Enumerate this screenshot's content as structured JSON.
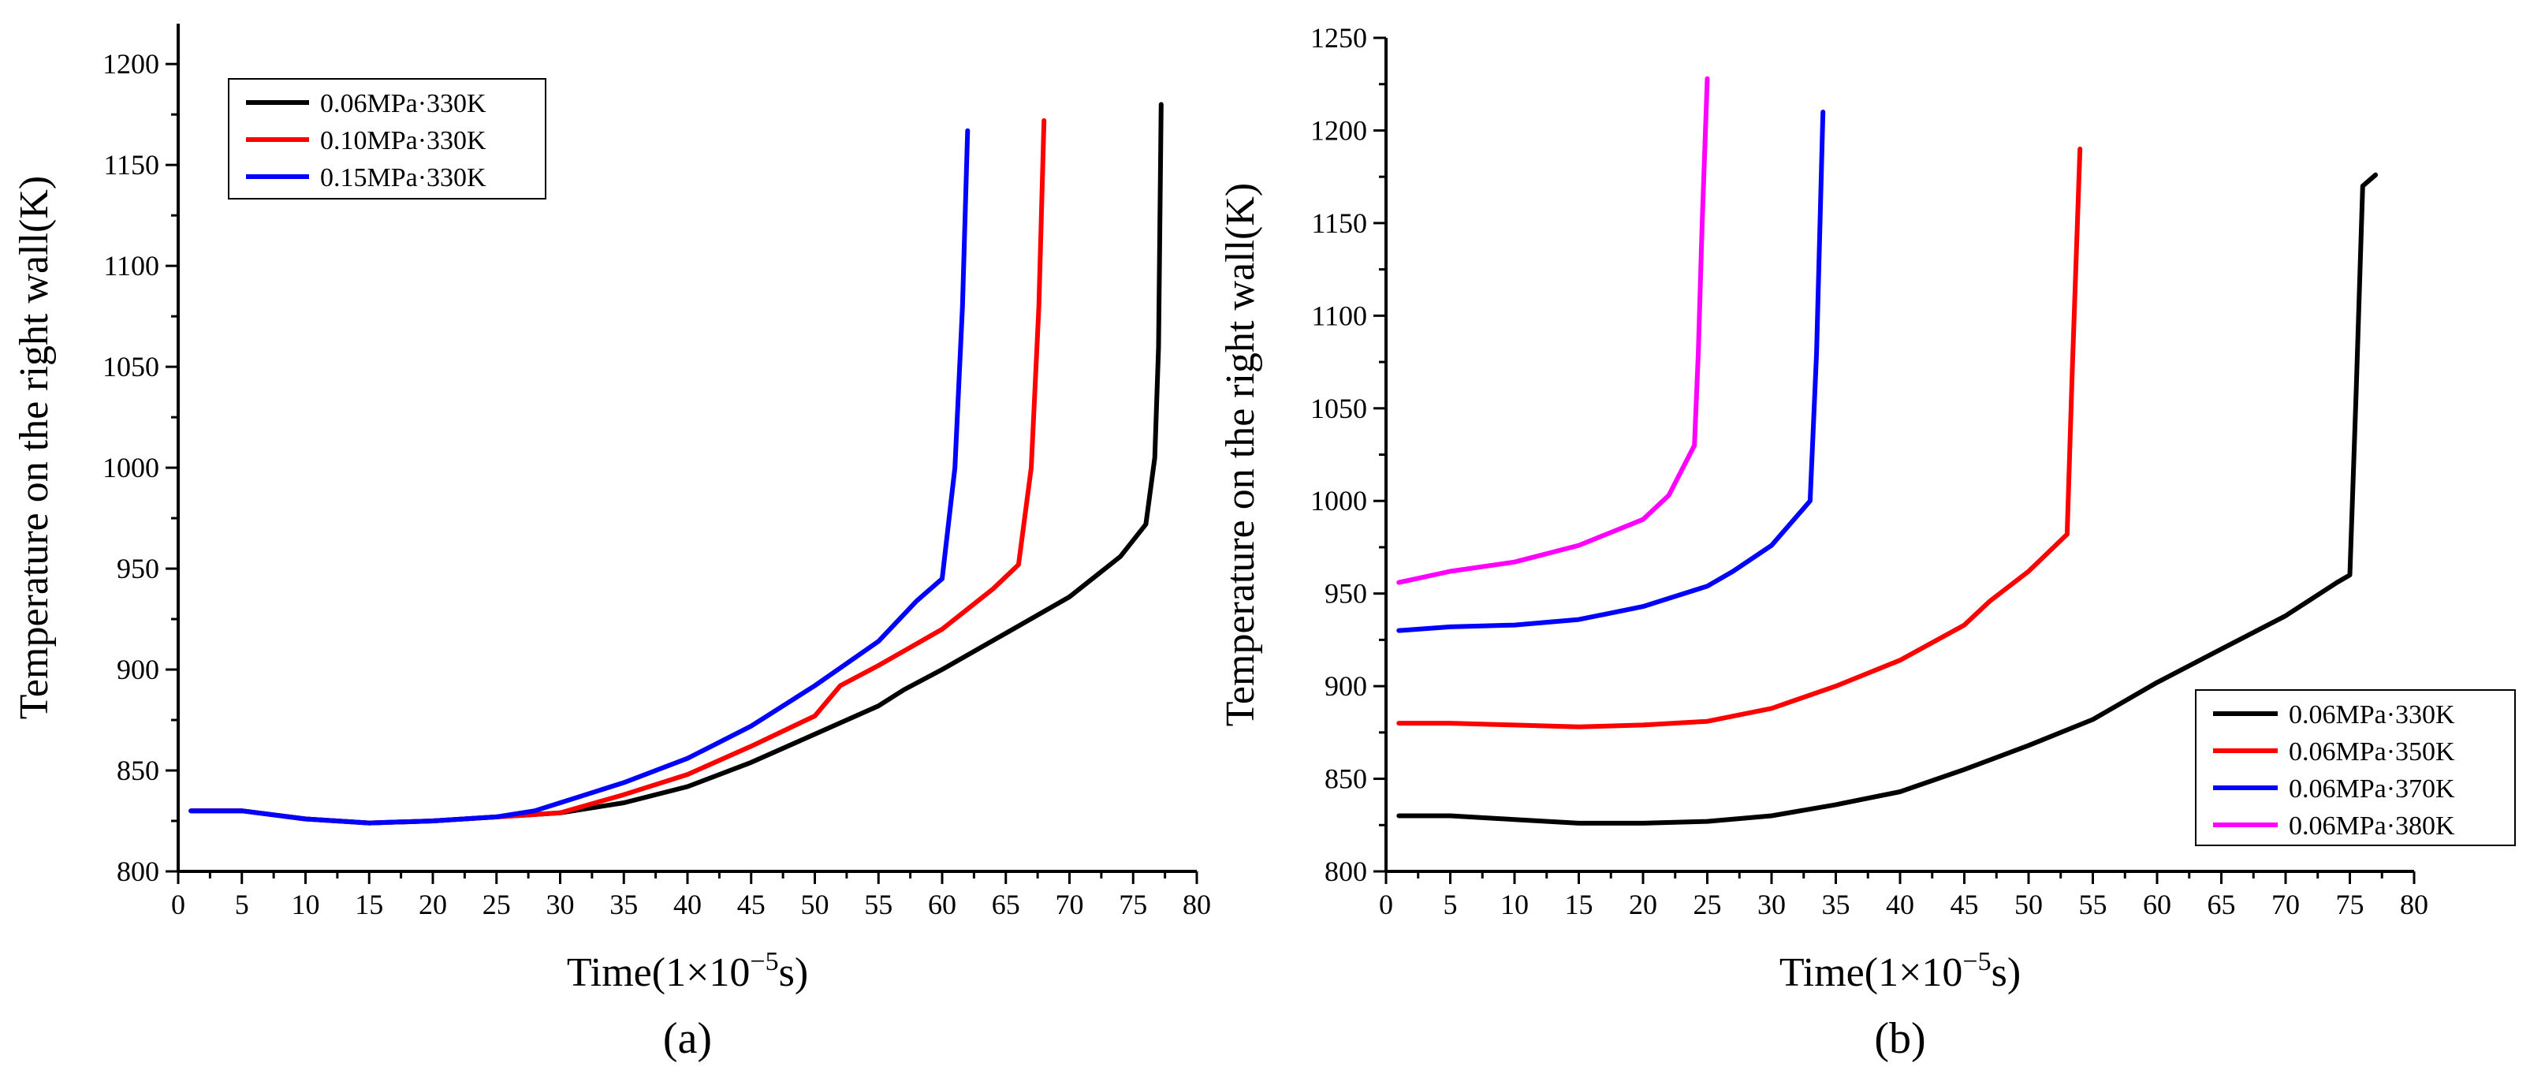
{
  "chart_data": [
    {
      "type": "line",
      "panel_label": "(a)",
      "xlabel": "Time(1×10",
      "xlabel_exp": "−5",
      "xlabel_end": "s)",
      "ylabel": "Temperature on the right wall(K)",
      "xlim": [
        0,
        80
      ],
      "ylim": [
        800,
        1220
      ],
      "xticks": [
        0,
        5,
        10,
        15,
        20,
        25,
        30,
        35,
        40,
        45,
        50,
        55,
        60,
        65,
        70,
        75,
        80
      ],
      "yticks": [
        800,
        850,
        900,
        950,
        1000,
        1050,
        1100,
        1150,
        1200
      ],
      "legend_position": "top-left",
      "series": [
        {
          "name": "0.06MPa·330K",
          "color": "#000000",
          "points": [
            [
              1,
              830
            ],
            [
              5,
              830
            ],
            [
              10,
              826
            ],
            [
              15,
              824
            ],
            [
              20,
              825
            ],
            [
              25,
              827
            ],
            [
              30,
              829
            ],
            [
              35,
              834
            ],
            [
              40,
              842
            ],
            [
              45,
              854
            ],
            [
              50,
              868
            ],
            [
              55,
              882
            ],
            [
              57,
              890
            ],
            [
              60,
              900
            ],
            [
              65,
              918
            ],
            [
              70,
              936
            ],
            [
              74,
              956
            ],
            [
              76,
              972
            ],
            [
              76.7,
              1005
            ],
            [
              77,
              1060
            ],
            [
              77.2,
              1180
            ]
          ]
        },
        {
          "name": "0.10MPa·330K",
          "color": "#ff0000",
          "points": [
            [
              1,
              830
            ],
            [
              5,
              830
            ],
            [
              10,
              826
            ],
            [
              15,
              824
            ],
            [
              20,
              825
            ],
            [
              25,
              827
            ],
            [
              30,
              829
            ],
            [
              35,
              838
            ],
            [
              40,
              848
            ],
            [
              45,
              862
            ],
            [
              50,
              877
            ],
            [
              52,
              892
            ],
            [
              55,
              902
            ],
            [
              60,
              920
            ],
            [
              64,
              940
            ],
            [
              66,
              952
            ],
            [
              67,
              1000
            ],
            [
              67.6,
              1080
            ],
            [
              68,
              1172
            ]
          ]
        },
        {
          "name": "0.15MPa·330K",
          "color": "#0000ff",
          "points": [
            [
              1,
              830
            ],
            [
              5,
              830
            ],
            [
              10,
              826
            ],
            [
              15,
              824
            ],
            [
              20,
              825
            ],
            [
              25,
              827
            ],
            [
              28,
              830
            ],
            [
              30,
              834
            ],
            [
              35,
              844
            ],
            [
              40,
              856
            ],
            [
              45,
              872
            ],
            [
              50,
              892
            ],
            [
              55,
              914
            ],
            [
              58,
              934
            ],
            [
              60,
              945
            ],
            [
              61,
              1000
            ],
            [
              61.6,
              1080
            ],
            [
              62,
              1167
            ]
          ]
        }
      ]
    },
    {
      "type": "line",
      "panel_label": "(b)",
      "xlabel": "Time(1×10",
      "xlabel_exp": "−5",
      "xlabel_end": "s)",
      "ylabel": "Temperature on the right wall(K)",
      "xlim": [
        0,
        80
      ],
      "ylim": [
        800,
        1250
      ],
      "xticks": [
        0,
        5,
        10,
        15,
        20,
        25,
        30,
        35,
        40,
        45,
        50,
        55,
        60,
        65,
        70,
        75,
        80
      ],
      "yticks": [
        800,
        850,
        900,
        950,
        1000,
        1050,
        1100,
        1150,
        1200,
        1250
      ],
      "legend_position": "bottom-right",
      "series": [
        {
          "name": "0.06MPa·330K",
          "color": "#000000",
          "points": [
            [
              1,
              830
            ],
            [
              5,
              830
            ],
            [
              10,
              828
            ],
            [
              15,
              826
            ],
            [
              20,
              826
            ],
            [
              25,
              827
            ],
            [
              30,
              830
            ],
            [
              35,
              836
            ],
            [
              40,
              843
            ],
            [
              45,
              855
            ],
            [
              50,
              868
            ],
            [
              55,
              882
            ],
            [
              60,
              902
            ],
            [
              65,
              920
            ],
            [
              70,
              938
            ],
            [
              74,
              956
            ],
            [
              75,
              960
            ],
            [
              75.5,
              1060
            ],
            [
              76,
              1170
            ],
            [
              77,
              1176
            ]
          ]
        },
        {
          "name": "0.06MPa·350K",
          "color": "#ff0000",
          "points": [
            [
              1,
              880
            ],
            [
              5,
              880
            ],
            [
              10,
              879
            ],
            [
              15,
              878
            ],
            [
              20,
              879
            ],
            [
              25,
              881
            ],
            [
              30,
              888
            ],
            [
              35,
              900
            ],
            [
              40,
              914
            ],
            [
              45,
              933
            ],
            [
              47,
              946
            ],
            [
              50,
              962
            ],
            [
              53,
              982
            ],
            [
              53.4,
              1070
            ],
            [
              54,
              1190
            ]
          ]
        },
        {
          "name": "0.06MPa·370K",
          "color": "#0000ff",
          "points": [
            [
              1,
              930
            ],
            [
              5,
              932
            ],
            [
              10,
              933
            ],
            [
              15,
              936
            ],
            [
              20,
              943
            ],
            [
              25,
              954
            ],
            [
              27,
              962
            ],
            [
              30,
              976
            ],
            [
              33,
              1000
            ],
            [
              33.5,
              1080
            ],
            [
              34,
              1210
            ]
          ]
        },
        {
          "name": "0.06MPa·380K",
          "color": "#ff00ff",
          "points": [
            [
              1,
              956
            ],
            [
              5,
              962
            ],
            [
              10,
              967
            ],
            [
              15,
              976
            ],
            [
              20,
              990
            ],
            [
              22,
              1003
            ],
            [
              24,
              1030
            ],
            [
              24.3,
              1080
            ],
            [
              24.6,
              1150
            ],
            [
              25,
              1228
            ]
          ]
        }
      ]
    }
  ]
}
